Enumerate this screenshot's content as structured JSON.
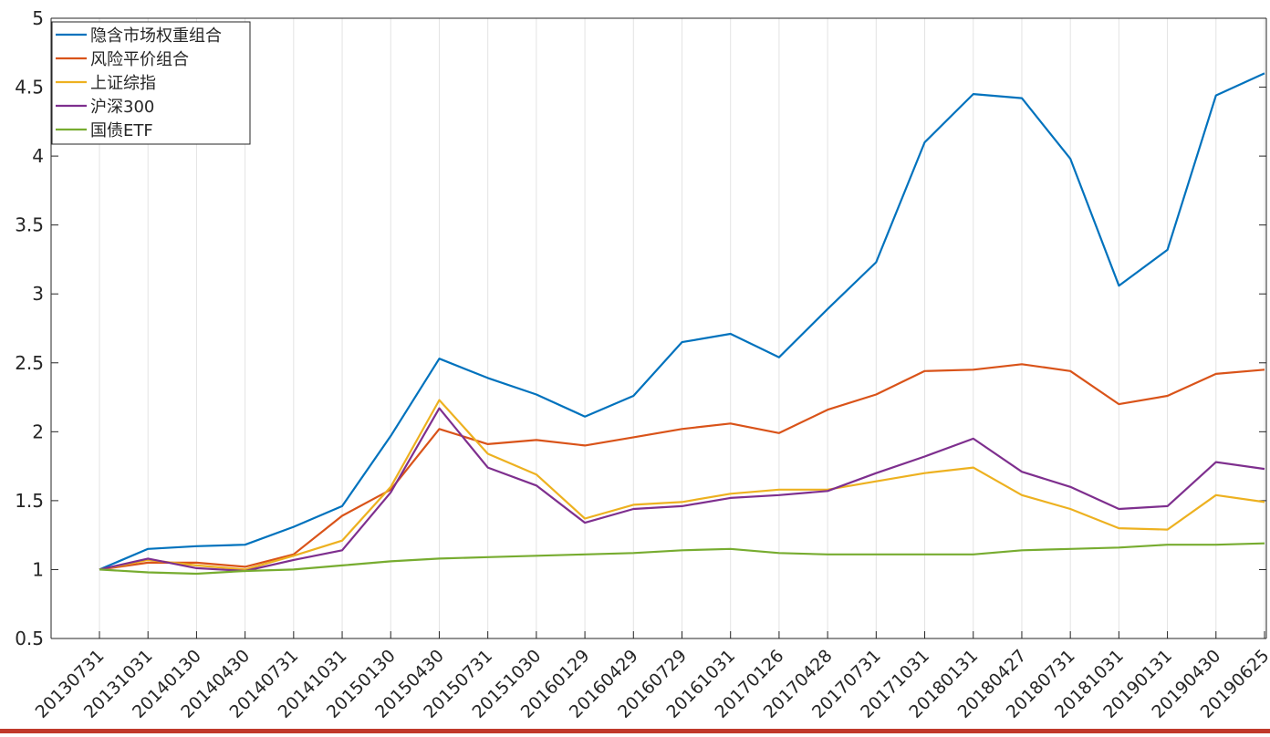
{
  "chart_data": {
    "type": "line",
    "title": "",
    "xlabel": "",
    "ylabel": "",
    "ylim": [
      0.5,
      5
    ],
    "yticks": [
      "0.5",
      "1",
      "1.5",
      "2",
      "2.5",
      "3",
      "3.5",
      "4",
      "4.5",
      "5"
    ],
    "grid": "x-only",
    "legend_position": "top-left",
    "categories": [
      "20130731",
      "20131031",
      "20140130",
      "20140430",
      "20140731",
      "20141031",
      "20150130",
      "20150430",
      "20150731",
      "20151030",
      "20160129",
      "20160429",
      "20160729",
      "20161031",
      "20170126",
      "20170428",
      "20170731",
      "20171031",
      "20180131",
      "20180427",
      "20180731",
      "20181031",
      "20190131",
      "20190430",
      "20190625"
    ],
    "series": [
      {
        "name": "隐含市场权重组合",
        "color": "#0072BD",
        "values": [
          1.0,
          1.15,
          1.17,
          1.18,
          1.31,
          1.46,
          1.97,
          2.53,
          2.39,
          2.27,
          2.11,
          2.26,
          2.65,
          2.71,
          2.54,
          2.89,
          3.23,
          4.1,
          4.45,
          4.42,
          3.98,
          3.06,
          3.32,
          4.44,
          4.6
        ]
      },
      {
        "name": "风险平价组合",
        "color": "#D95319",
        "values": [
          1.0,
          1.05,
          1.05,
          1.02,
          1.11,
          1.39,
          1.58,
          2.02,
          1.91,
          1.94,
          1.9,
          1.96,
          2.02,
          2.06,
          1.99,
          2.16,
          2.27,
          2.44,
          2.45,
          2.49,
          2.44,
          2.2,
          2.26,
          2.42,
          2.45
        ]
      },
      {
        "name": "上证综指",
        "color": "#EDB120",
        "values": [
          1.0,
          1.07,
          1.03,
          1.0,
          1.1,
          1.21,
          1.6,
          2.23,
          1.84,
          1.69,
          1.37,
          1.47,
          1.49,
          1.55,
          1.58,
          1.58,
          1.64,
          1.7,
          1.74,
          1.54,
          1.44,
          1.3,
          1.29,
          1.54,
          1.49
        ]
      },
      {
        "name": "沪深300",
        "color": "#7E2F8E",
        "values": [
          1.0,
          1.08,
          1.01,
          0.99,
          1.07,
          1.14,
          1.56,
          2.17,
          1.74,
          1.61,
          1.34,
          1.44,
          1.46,
          1.52,
          1.54,
          1.57,
          1.7,
          1.82,
          1.95,
          1.71,
          1.6,
          1.44,
          1.46,
          1.78,
          1.73
        ]
      },
      {
        "name": "国债ETF",
        "color": "#77AC30",
        "values": [
          1.0,
          0.98,
          0.97,
          0.99,
          1.0,
          1.03,
          1.06,
          1.08,
          1.09,
          1.1,
          1.11,
          1.12,
          1.14,
          1.15,
          1.12,
          1.11,
          1.11,
          1.11,
          1.11,
          1.14,
          1.15,
          1.16,
          1.18,
          1.18,
          1.19
        ]
      }
    ]
  }
}
